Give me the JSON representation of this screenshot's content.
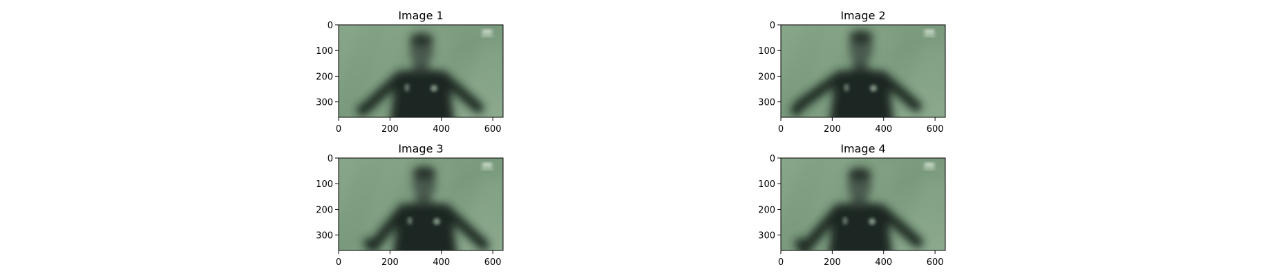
{
  "figure": {
    "background": "#ffffff"
  },
  "chart_data": [
    {
      "type": "image",
      "title": "Image 1",
      "xlim": [
        0,
        640
      ],
      "ylim": [
        360,
        0
      ],
      "xticks": [
        0,
        200,
        400,
        600
      ],
      "yticks": [
        0,
        100,
        200,
        300
      ],
      "image_content": "blurred green-tinted photo of a soccer player celebrating",
      "tint_color": "#6f8f74",
      "frame_variant": 1
    },
    {
      "type": "image",
      "title": "Image 2",
      "xlim": [
        0,
        640
      ],
      "ylim": [
        360,
        0
      ],
      "xticks": [
        0,
        200,
        400,
        600
      ],
      "yticks": [
        0,
        100,
        200,
        300
      ],
      "image_content": "blurred green-tinted photo of a soccer player celebrating",
      "tint_color": "#6f8f74",
      "frame_variant": 2
    },
    {
      "type": "image",
      "title": "Image 3",
      "xlim": [
        0,
        640
      ],
      "ylim": [
        360,
        0
      ],
      "xticks": [
        0,
        200,
        400,
        600
      ],
      "yticks": [
        0,
        100,
        200,
        300
      ],
      "image_content": "blurred green-tinted photo of a soccer player celebrating",
      "tint_color": "#6f8f74",
      "frame_variant": 3
    },
    {
      "type": "image",
      "title": "Image 4",
      "xlim": [
        0,
        640
      ],
      "ylim": [
        360,
        0
      ],
      "xticks": [
        0,
        200,
        400,
        600
      ],
      "yticks": [
        0,
        100,
        200,
        300
      ],
      "image_content": "blurred green-tinted photo of a soccer player celebrating",
      "tint_color": "#6f8f74",
      "frame_variant": 4
    }
  ]
}
